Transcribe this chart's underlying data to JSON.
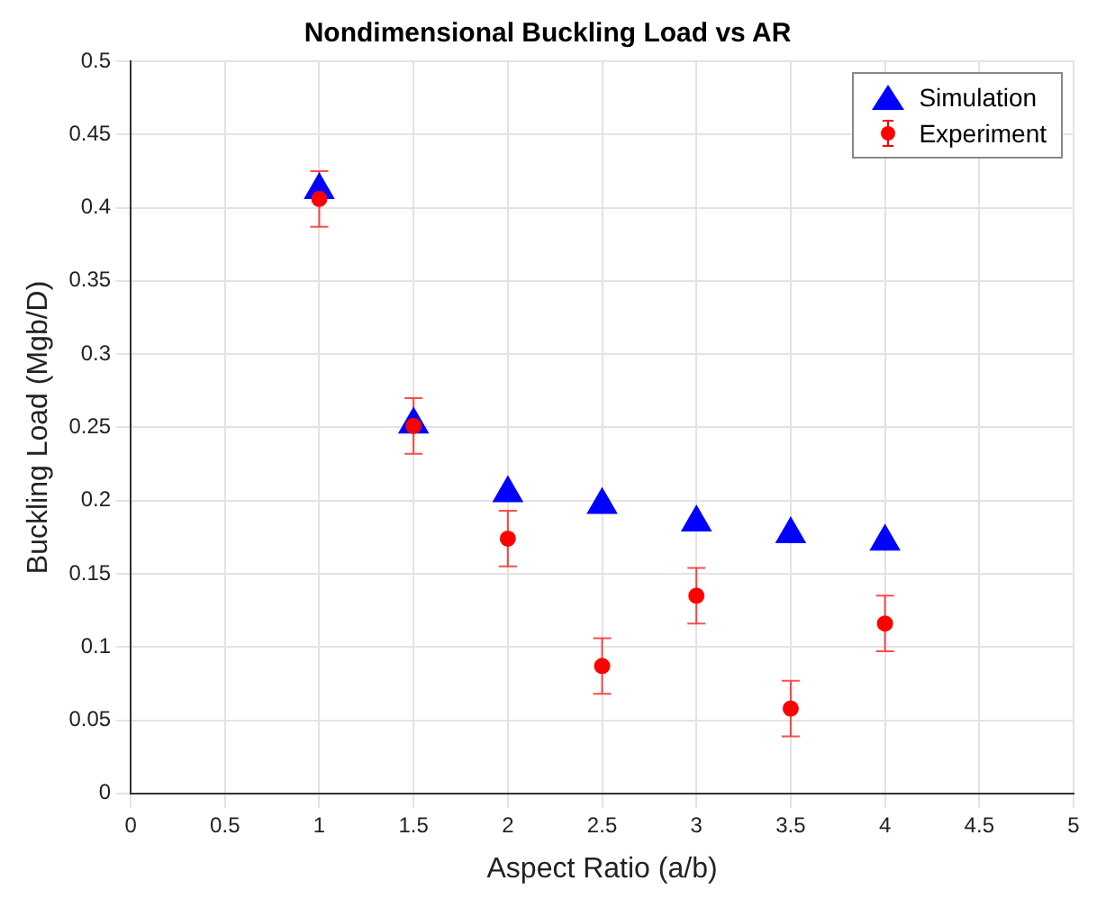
{
  "chart_data": {
    "type": "scatter",
    "title": "Nondimensional Buckling Load vs AR",
    "xlabel": "Aspect Ratio (a/b)",
    "ylabel": "Buckling Load (Mgb/D)",
    "x": [
      1,
      1.5,
      2,
      2.5,
      3,
      3.5,
      4
    ],
    "series": [
      {
        "name": "Simulation",
        "color": "#0000ff",
        "marker": "triangle",
        "values": [
          0.412,
          0.252,
          0.205,
          0.197,
          0.185,
          0.177,
          0.172
        ]
      },
      {
        "name": "Experiment",
        "color": "#ff0000",
        "marker": "circle",
        "values": [
          0.406,
          0.251,
          0.174,
          0.087,
          0.135,
          0.058,
          0.116
        ],
        "errors": [
          0.019,
          0.019,
          0.019,
          0.019,
          0.019,
          0.019,
          0.019
        ]
      }
    ],
    "xlim": [
      0,
      5
    ],
    "xticks": [
      0,
      0.5,
      1,
      1.5,
      2,
      2.5,
      3,
      3.5,
      4,
      4.5,
      5
    ],
    "ylim": [
      0,
      0.5
    ],
    "yticks": [
      0,
      0.05,
      0.1,
      0.15,
      0.2,
      0.25,
      0.3,
      0.35,
      0.4,
      0.45,
      0.5
    ],
    "grid": true,
    "legend": "top right"
  }
}
